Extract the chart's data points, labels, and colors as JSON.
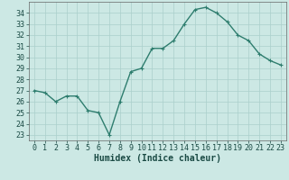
{
  "x": [
    0,
    1,
    2,
    3,
    4,
    5,
    6,
    7,
    8,
    9,
    10,
    11,
    12,
    13,
    14,
    15,
    16,
    17,
    18,
    19,
    20,
    21,
    22,
    23
  ],
  "y": [
    27.0,
    26.8,
    26.0,
    26.5,
    26.5,
    25.2,
    25.0,
    23.0,
    26.0,
    28.7,
    29.0,
    30.8,
    30.8,
    31.5,
    33.0,
    34.3,
    34.5,
    34.0,
    33.2,
    32.0,
    31.5,
    30.3,
    29.7,
    29.3
  ],
  "line_color": "#2e7d6e",
  "marker": "+",
  "marker_size": 3,
  "linewidth": 1.0,
  "xlabel": "Humidex (Indice chaleur)",
  "xlim": [
    -0.5,
    23.5
  ],
  "ylim": [
    22.5,
    35.0
  ],
  "yticks": [
    23,
    24,
    25,
    26,
    27,
    28,
    29,
    30,
    31,
    32,
    33,
    34
  ],
  "xticks": [
    0,
    1,
    2,
    3,
    4,
    5,
    6,
    7,
    8,
    9,
    10,
    11,
    12,
    13,
    14,
    15,
    16,
    17,
    18,
    19,
    20,
    21,
    22,
    23
  ],
  "bg_color": "#cce8e4",
  "grid_color": "#aacfcb",
  "xlabel_fontsize": 7,
  "tick_fontsize": 6
}
